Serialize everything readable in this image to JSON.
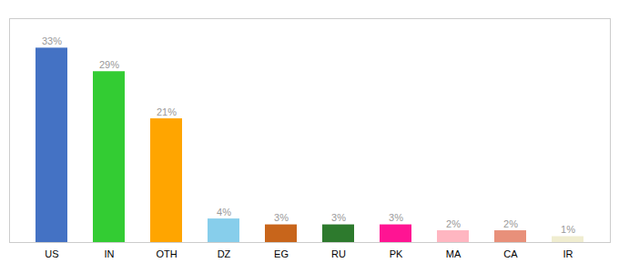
{
  "chart_data": {
    "type": "bar",
    "categories": [
      "US",
      "IN",
      "OTH",
      "DZ",
      "EG",
      "RU",
      "PK",
      "MA",
      "CA",
      "IR"
    ],
    "values": [
      33,
      29,
      21,
      4,
      3,
      3,
      3,
      2,
      2,
      1
    ],
    "colors": [
      "#4472C4",
      "#33CC33",
      "#FFA500",
      "#87CEEB",
      "#C8651B",
      "#2D7A2D",
      "#FF1493",
      "#FFB6C1",
      "#E8907A",
      "#F0EDD0"
    ],
    "ylim": [
      0,
      38
    ],
    "data_labels": true,
    "value_labels": [
      "33%",
      "29%",
      "21%",
      "4%",
      "3%",
      "3%",
      "3%",
      "2%",
      "2%",
      "1%"
    ],
    "tick_labels": "x"
  }
}
